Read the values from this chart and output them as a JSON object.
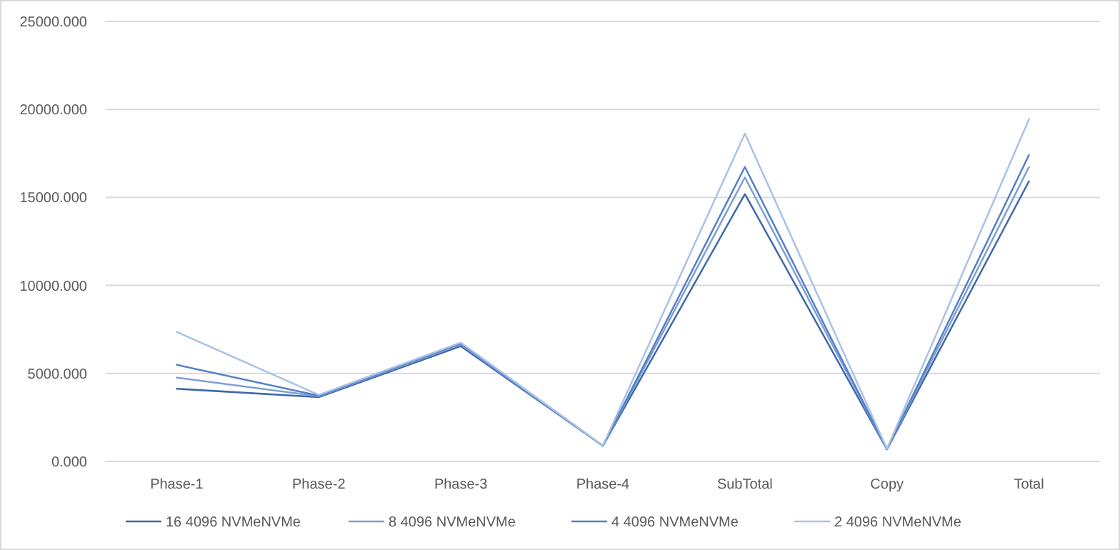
{
  "chart_data": {
    "type": "line",
    "categories": [
      "Phase-1",
      "Phase-2",
      "Phase-3",
      "Phase-4",
      "SubTotal",
      "Copy",
      "Total"
    ],
    "series": [
      {
        "name": "16 4096 NVMeNVMe",
        "color": "#3f68ab",
        "values": [
          4130,
          3650,
          6550,
          890,
          15190,
          680,
          15920
        ]
      },
      {
        "name": "8 4096 NVMeNVMe",
        "color": "#7f9fd4",
        "values": [
          4760,
          3700,
          6650,
          890,
          16140,
          700,
          16730
        ]
      },
      {
        "name": "4 4096 NVMeNVMe",
        "color": "#5580c4",
        "values": [
          5490,
          3730,
          6700,
          890,
          16730,
          700,
          17410
        ]
      },
      {
        "name": "2 4096 NVMeNVMe",
        "color": "#a9c2e8",
        "values": [
          7360,
          3780,
          6750,
          900,
          18630,
          720,
          19440
        ]
      }
    ],
    "ylim": [
      0,
      25000
    ],
    "yticks": [
      {
        "value": 0,
        "label": "0.000"
      },
      {
        "value": 5000,
        "label": "5000.000"
      },
      {
        "value": 10000,
        "label": "10000.000"
      },
      {
        "value": 15000,
        "label": "15000.000"
      },
      {
        "value": 20000,
        "label": "20000.000"
      },
      {
        "value": 25000,
        "label": "25000.000"
      }
    ],
    "grid": "y",
    "legend": "bottom",
    "marker": "none",
    "line_style": "solid"
  }
}
